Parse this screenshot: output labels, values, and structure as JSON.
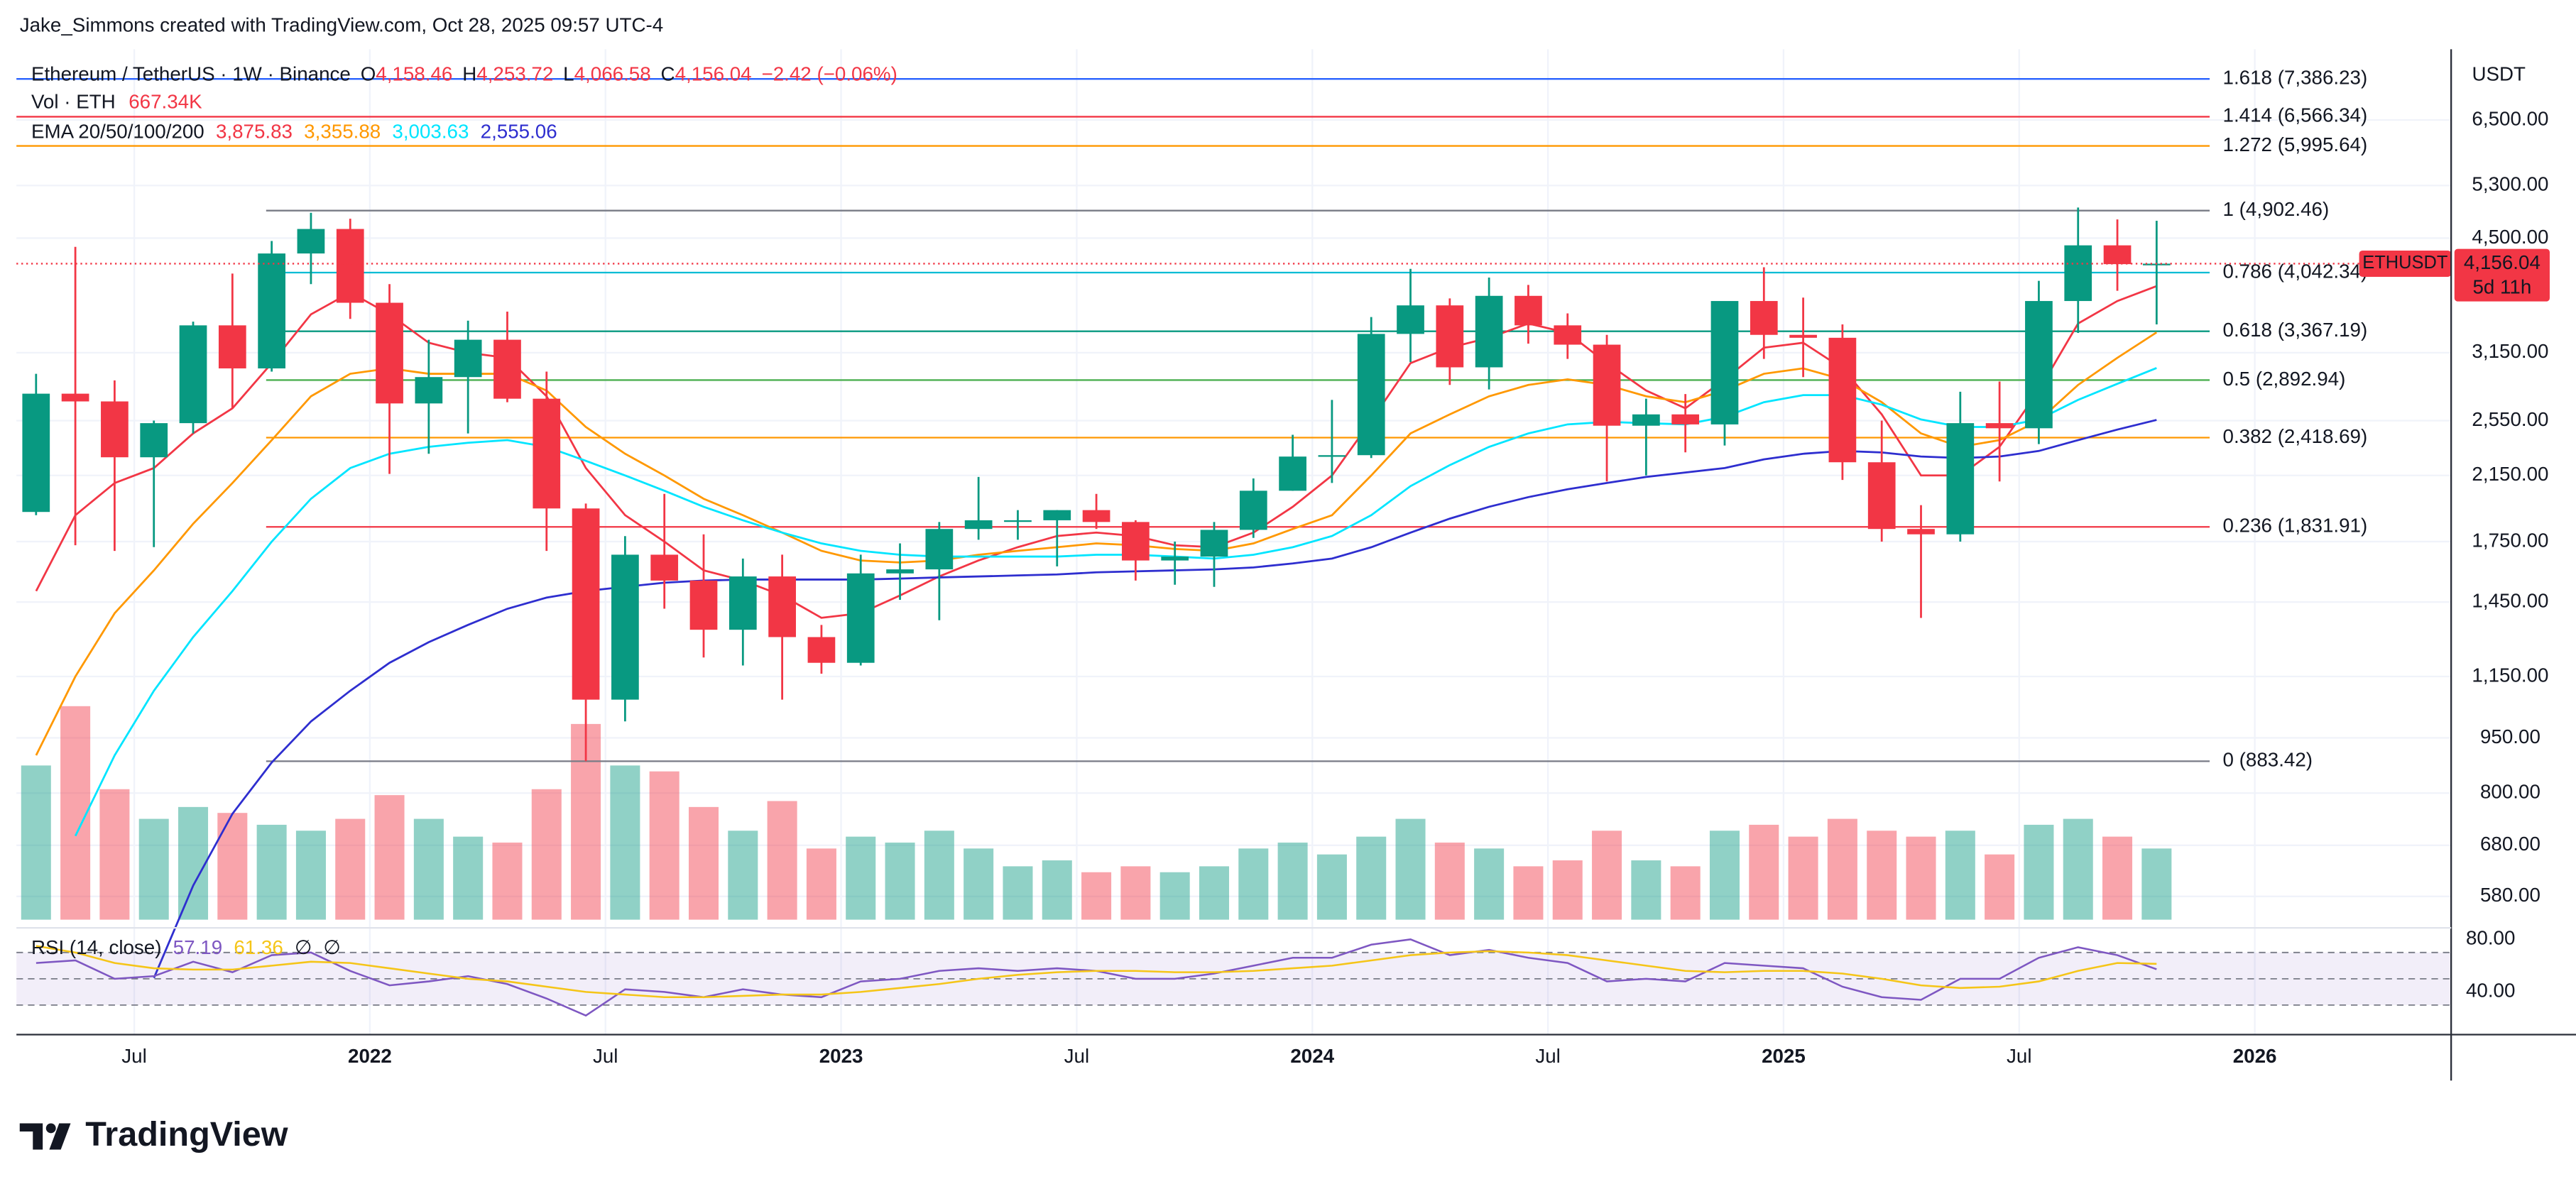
{
  "header": "Jake_Simmons created with TradingView.com, Oct 28, 2025 09:57 UTC-4",
  "logo": "TradingView",
  "chart_data": {
    "type": "candlestick",
    "symbol": "Ethereum / TetherUS · 1W · Binance",
    "ohlc": [
      {
        "key": "O",
        "value": "4,158.46"
      },
      {
        "key": "H",
        "value": "4,253.72"
      },
      {
        "key": "L",
        "value": "4,066.58"
      },
      {
        "key": "C",
        "value": "4,156.04"
      }
    ],
    "change": "−2.42 (−0.06%)",
    "volume_legend": {
      "label": "Vol · ETH",
      "value": "667.34K"
    },
    "ema_legend": {
      "label": "EMA 20/50/100/200",
      "values": [
        "3,875.83",
        "3,355.88",
        "3,003.63",
        "2,555.06"
      ]
    },
    "currency": "USDT",
    "price_badge": {
      "symbol": "ETHUSDT",
      "price": "4,156.04",
      "countdown": "5d 11h"
    },
    "log_scale": true,
    "grid": true,
    "up_color": "#089981",
    "down_color": "#f23645",
    "xlim": [
      "2021-04",
      "2026-06"
    ],
    "xticks": [
      {
        "value": "2021-07",
        "label": "Jul"
      },
      {
        "value": "2022-01",
        "label": "2022"
      },
      {
        "value": "2022-07",
        "label": "Jul"
      },
      {
        "value": "2023-01",
        "label": "2023"
      },
      {
        "value": "2023-07",
        "label": "Jul"
      },
      {
        "value": "2024-01",
        "label": "2024"
      },
      {
        "value": "2024-07",
        "label": "Jul"
      },
      {
        "value": "2025-01",
        "label": "2025"
      },
      {
        "value": "2025-07",
        "label": "Jul"
      },
      {
        "value": "2026-01",
        "label": "2026"
      }
    ],
    "ylim": [
      534,
      8100
    ],
    "yticks": [
      {
        "value": 6500,
        "label": "6,500.00"
      },
      {
        "value": 5300,
        "label": "5,300.00"
      },
      {
        "value": 4500,
        "label": "4,500.00"
      },
      {
        "value": 3150,
        "label": "3,150.00"
      },
      {
        "value": 2550,
        "label": "2,550.00"
      },
      {
        "value": 2150,
        "label": "2,150.00"
      },
      {
        "value": 1750,
        "label": "1,750.00"
      },
      {
        "value": 1450,
        "label": "1,450.00"
      },
      {
        "value": 1150,
        "label": "1,150.00"
      },
      {
        "value": 950,
        "label": "950.00"
      },
      {
        "value": 800,
        "label": "800.00"
      },
      {
        "value": 680,
        "label": "680.00"
      },
      {
        "value": 580,
        "label": "580.00"
      }
    ],
    "x": [
      "2021-04",
      "2021-05",
      "2021-06",
      "2021-07",
      "2021-08",
      "2021-09",
      "2021-10",
      "2021-11",
      "2021-12",
      "2022-01",
      "2022-02",
      "2022-03",
      "2022-04",
      "2022-05",
      "2022-06",
      "2022-07",
      "2022-08",
      "2022-09",
      "2022-10",
      "2022-11",
      "2022-12",
      "2023-01",
      "2023-02",
      "2023-03",
      "2023-04",
      "2023-05",
      "2023-06",
      "2023-07",
      "2023-08",
      "2023-09",
      "2023-10",
      "2023-11",
      "2023-12",
      "2024-01",
      "2024-02",
      "2024-03",
      "2024-04",
      "2024-05",
      "2024-06",
      "2024-07",
      "2024-08",
      "2024-09",
      "2024-10",
      "2024-11",
      "2024-12",
      "2025-01",
      "2025-02",
      "2025-03",
      "2025-04",
      "2025-05",
      "2025-06",
      "2025-07",
      "2025-08",
      "2025-09",
      "2025-10"
    ],
    "open": [
      1919,
      2773,
      2707,
      2275,
      2530,
      3430,
      3000,
      4290,
      4630,
      3680,
      2690,
      2920,
      3280,
      2730,
      1940,
      1070,
      1680,
      1550,
      1330,
      1570,
      1300,
      1200,
      1585,
      1605,
      1820,
      1870,
      1870,
      1930,
      1860,
      1650,
      1670,
      1815,
      2050,
      2280,
      2290,
      3340,
      3650,
      3010,
      3760,
      3430,
      3230,
      2510,
      2600,
      2520,
      3700,
      3330,
      3300,
      2240,
      1820,
      1790,
      2530,
      2490,
      3700,
      4400,
      4150
    ],
    "high": [
      2950,
      4380,
      2890,
      2550,
      3470,
      4030,
      4460,
      4870,
      4780,
      3900,
      3280,
      3480,
      3580,
      2970,
      1970,
      1780,
      2030,
      1790,
      1660,
      1680,
      1350,
      1680,
      1740,
      1860,
      2140,
      1930,
      1930,
      2030,
      1870,
      1750,
      1860,
      2130,
      2440,
      2720,
      3520,
      4090,
      3730,
      3980,
      3890,
      3560,
      3330,
      2730,
      2770,
      3680,
      4110,
      3740,
      3440,
      2550,
      1960,
      2790,
      2880,
      3940,
      4950,
      4770,
      4750
    ],
    "low": [
      1900,
      1730,
      1700,
      1720,
      2450,
      2650,
      2970,
      3900,
      3500,
      2160,
      2300,
      2450,
      2700,
      1700,
      883.42,
      1000,
      1420,
      1220,
      1190,
      1070,
      1160,
      1190,
      1460,
      1370,
      1760,
      1760,
      1620,
      1820,
      1550,
      1530,
      1520,
      1770,
      2050,
      2100,
      2270,
      3060,
      2850,
      2810,
      3240,
      3090,
      2110,
      2150,
      2310,
      2360,
      3090,
      2920,
      2120,
      1750,
      1380,
      1750,
      2110,
      2370,
      3350,
      3820,
      3440
    ],
    "close": [
      2773,
      2707,
      2275,
      2530,
      3430,
      3000,
      4290,
      4630,
      3680,
      2690,
      2920,
      3280,
      2730,
      1940,
      1070,
      1680,
      1550,
      1330,
      1570,
      1300,
      1200,
      1585,
      1605,
      1820,
      1870,
      1870,
      1930,
      1860,
      1650,
      1670,
      1815,
      2050,
      2280,
      2290,
      3340,
      3650,
      3010,
      3760,
      3430,
      3230,
      2510,
      2600,
      2520,
      3700,
      3330,
      3300,
      2240,
      1820,
      1790,
      2530,
      2490,
      3700,
      4400,
      4150,
      4156.04
    ],
    "volume": [
      2600000,
      3600000,
      2200000,
      1700000,
      1900000,
      1800000,
      1600000,
      1500000,
      1700000,
      2100000,
      1700000,
      1400000,
      1300000,
      2200000,
      3300000,
      2600000,
      2500000,
      1900000,
      1500000,
      2000000,
      1200000,
      1400000,
      1300000,
      1500000,
      1200000,
      900000,
      1000000,
      800000,
      900000,
      800000,
      900000,
      1200000,
      1300000,
      1100000,
      1400000,
      1700000,
      1300000,
      1200000,
      900000,
      1000000,
      1500000,
      1000000,
      900000,
      1500000,
      1600000,
      1400000,
      1700000,
      1500000,
      1400000,
      1500000,
      1100000,
      1600000,
      1700000,
      1400000,
      1200000
    ],
    "series": [
      {
        "color": "#f23645",
        "values": [
          1500,
          1900,
          2100,
          2200,
          2450,
          2650,
          3050,
          3550,
          3800,
          3550,
          3250,
          3150,
          3100,
          2750,
          2200,
          1900,
          1750,
          1600,
          1550,
          1480,
          1380,
          1400,
          1480,
          1570,
          1650,
          1720,
          1780,
          1800,
          1780,
          1730,
          1720,
          1800,
          1950,
          2150,
          2550,
          3050,
          3200,
          3300,
          3450,
          3350,
          3050,
          2800,
          2650,
          2900,
          3200,
          3250,
          3000,
          2600,
          2150,
          2150,
          2350,
          2800,
          3450,
          3700,
          3875.83
        ]
      },
      {
        "color": "#ff9800",
        "values": [
          900,
          1150,
          1400,
          1600,
          1850,
          2100,
          2400,
          2750,
          2950,
          3000,
          2950,
          2950,
          2950,
          2800,
          2500,
          2300,
          2150,
          2000,
          1900,
          1800,
          1700,
          1650,
          1640,
          1650,
          1680,
          1700,
          1720,
          1740,
          1730,
          1710,
          1700,
          1740,
          1820,
          1900,
          2150,
          2450,
          2600,
          2750,
          2850,
          2900,
          2850,
          2750,
          2700,
          2800,
          2950,
          3000,
          2900,
          2700,
          2450,
          2350,
          2400,
          2550,
          2850,
          3100,
          3355.88
        ]
      },
      {
        "color": "#00e5ff",
        "values": [
          null,
          700,
          900,
          1100,
          1300,
          1500,
          1750,
          2000,
          2200,
          2300,
          2350,
          2380,
          2400,
          2350,
          2250,
          2150,
          2050,
          1950,
          1870,
          1800,
          1740,
          1700,
          1680,
          1670,
          1670,
          1670,
          1670,
          1680,
          1680,
          1670,
          1660,
          1680,
          1720,
          1780,
          1900,
          2080,
          2220,
          2350,
          2450,
          2520,
          2540,
          2530,
          2520,
          2580,
          2700,
          2760,
          2760,
          2680,
          2560,
          2500,
          2500,
          2560,
          2720,
          2860,
          3003.63
        ]
      },
      {
        "color": "#2e2ecf",
        "values": [
          null,
          null,
          null,
          450,
          600,
          750,
          880,
          1000,
          1100,
          1200,
          1280,
          1350,
          1420,
          1470,
          1500,
          1520,
          1540,
          1550,
          1555,
          1555,
          1555,
          1555,
          1560,
          1565,
          1570,
          1575,
          1580,
          1590,
          1595,
          1600,
          1605,
          1615,
          1635,
          1660,
          1720,
          1800,
          1880,
          1950,
          2010,
          2060,
          2100,
          2140,
          2170,
          2200,
          2260,
          2300,
          2320,
          2310,
          2280,
          2270,
          2280,
          2320,
          2400,
          2480,
          2555.06
        ]
      }
    ],
    "fib_levels": [
      {
        "label": "1.618 (7,386.23)",
        "value": 7386.23,
        "color": "#2962ff",
        "extend_left": true
      },
      {
        "label": "1.414 (6,566.34)",
        "value": 6566.34,
        "color": "#f23645",
        "extend_left": true
      },
      {
        "label": "1.272 (5,995.64)",
        "value": 5995.64,
        "color": "#ff9800",
        "extend_left": true
      },
      {
        "label": "1 (4,902.46)",
        "value": 4902.46,
        "color": "#787b86",
        "extend_left": false
      },
      {
        "label": "0.786 (4,042.34)",
        "value": 4042.34,
        "color": "#00bcd4",
        "extend_left": false
      },
      {
        "label": "0.618 (3,367.19)",
        "value": 3367.19,
        "color": "#089981",
        "extend_left": false
      },
      {
        "label": "0.5 (2,892.94)",
        "value": 2892.94,
        "color": "#4caf50",
        "extend_left": false
      },
      {
        "label": "0.382 (2,418.69)",
        "value": 2418.69,
        "color": "#ff9800",
        "extend_left": false
      },
      {
        "label": "0.236 (1,831.91)",
        "value": 1831.91,
        "color": "#f23645",
        "extend_left": false
      },
      {
        "label": "0 (883.42)",
        "value": 883.42,
        "color": "#787b86",
        "extend_left": false
      }
    ],
    "rsi": {
      "legend": {
        "label": "RSI (14, close)",
        "values": [
          "57.19",
          "61.36",
          "∅",
          "∅"
        ]
      },
      "ylim": [
        10,
        87.5
      ],
      "yticks": [
        {
          "value": 80,
          "label": "80.00"
        },
        {
          "value": 40,
          "label": "40.00"
        }
      ],
      "bands": {
        "upper": 70,
        "middle": 50,
        "lower": 30
      },
      "series": [
        {
          "color": "#7e57c2",
          "values": [
            62,
            64,
            50,
            52,
            63,
            55,
            68,
            70,
            56,
            45,
            48,
            52,
            46,
            35,
            22,
            42,
            40,
            36,
            42,
            38,
            36,
            48,
            50,
            56,
            58,
            56,
            58,
            56,
            50,
            50,
            54,
            60,
            66,
            66,
            76,
            80,
            68,
            72,
            66,
            62,
            48,
            50,
            48,
            62,
            60,
            58,
            44,
            36,
            34,
            50,
            50,
            66,
            74,
            68,
            57.19
          ]
        },
        {
          "color": "#f5c518",
          "values": [
            75,
            70,
            62,
            58,
            57,
            57,
            60,
            63,
            62,
            58,
            54,
            50,
            48,
            44,
            40,
            38,
            36,
            36,
            37,
            38,
            38,
            40,
            43,
            46,
            50,
            53,
            55,
            56,
            56,
            55,
            55,
            56,
            58,
            60,
            64,
            68,
            70,
            71,
            70,
            68,
            64,
            60,
            56,
            55,
            56,
            56,
            54,
            50,
            45,
            43,
            44,
            48,
            56,
            62,
            61.36
          ]
        }
      ]
    }
  }
}
